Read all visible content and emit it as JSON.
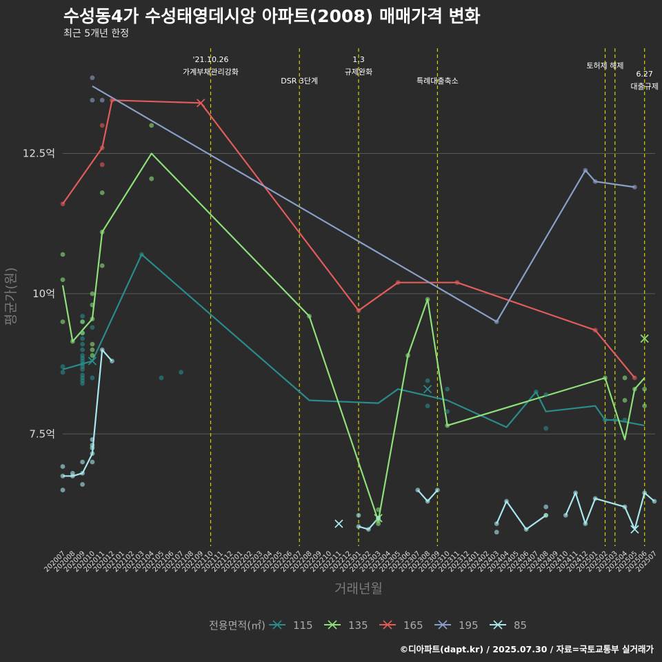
{
  "title": "수성동4가 수성태영데시앙 아파트(2008) 매매가격 변화",
  "subtitle": "최근 5개년 한정",
  "caption": "©디아파트(dapt.kr) / 2025.07.30 / 자료=국토교통부 실거래가",
  "colors": {
    "background": "#2b2b2b",
    "grid": "#5a5a5a",
    "event_line": "#d4d400",
    "115": "#2a8c8c",
    "135": "#8ee07a",
    "165": "#e25c5c",
    "195": "#8aa0c8",
    "85": "#a8e8ee"
  },
  "chart_data": {
    "type": "line",
    "title": "수성동4가 수성태영데시앙 아파트(2008) 매매가격 변화",
    "subtitle": "최근 5개년 한정",
    "xlabel": "거래년월",
    "ylabel": "평균가(원)",
    "ylim": [
      5.5,
      14.4
    ],
    "yticks": [
      {
        "value": 7.5,
        "label": "7.5억"
      },
      {
        "value": 10,
        "label": "10억"
      },
      {
        "value": 12.5,
        "label": "12.5억"
      }
    ],
    "x_categories": [
      "202007",
      "202008",
      "202009",
      "202010",
      "202011",
      "202012",
      "202101",
      "202102",
      "202103",
      "202104",
      "202105",
      "202106",
      "202107",
      "202108",
      "202109",
      "202110",
      "202111",
      "202112",
      "202201",
      "202202",
      "202203",
      "202204",
      "202205",
      "202206",
      "202207",
      "202208",
      "202209",
      "202210",
      "202211",
      "202212",
      "202301",
      "202302",
      "202303",
      "202304",
      "202305",
      "202306",
      "202307",
      "202308",
      "202309",
      "202310",
      "202311",
      "202312",
      "202401",
      "202402",
      "202403",
      "202404",
      "202405",
      "202406",
      "202407",
      "202408",
      "202409",
      "202410",
      "202411",
      "202412",
      "202501",
      "202502",
      "202503",
      "202504",
      "202505",
      "202506",
      "202507"
    ],
    "legend_title": "전용면적(㎡)",
    "legend_position": "bottom",
    "grid": true,
    "events": [
      {
        "x": "202110",
        "label": [
          "'21.10.26",
          "가계부채관리강화"
        ],
        "level": 1
      },
      {
        "x": "202207",
        "label": [
          "DSR 3단계"
        ],
        "level": 2
      },
      {
        "x": "202301",
        "label": [
          "1.3",
          "규제완화"
        ],
        "level": 1
      },
      {
        "x": "202309",
        "label": [
          "특례대출축소"
        ],
        "level": 2
      },
      {
        "x": "202502",
        "label": [
          "토허제 해제"
        ],
        "level": 0
      },
      {
        "x": "202503",
        "label": [],
        "level": 0
      },
      {
        "x": "202506",
        "label": [
          "6.27",
          "대출규제"
        ],
        "level": 3
      }
    ],
    "series": [
      {
        "name": "115",
        "color": "#2a8c8c",
        "line": [
          [
            "202007",
            8.65
          ],
          [
            "202009",
            8.75
          ],
          [
            "202010",
            8.8
          ],
          [
            "202103",
            10.7
          ],
          [
            "202208",
            8.1
          ],
          [
            "202303",
            8.05
          ],
          [
            "202305",
            8.3
          ],
          [
            "202310",
            8.1
          ],
          [
            "202404",
            7.62
          ],
          [
            "202407",
            8.25
          ],
          [
            "202408",
            7.9
          ],
          [
            "202501",
            8.0
          ],
          [
            "202502",
            7.75
          ],
          [
            "202503",
            7.75
          ],
          [
            "202506",
            7.65
          ]
        ],
        "points": [
          [
            "202007",
            8.6
          ],
          [
            "202007",
            8.7
          ],
          [
            "202009",
            8.4
          ],
          [
            "202009",
            8.45
          ],
          [
            "202009",
            8.5
          ],
          [
            "202009",
            8.55
          ],
          [
            "202009",
            8.65
          ],
          [
            "202009",
            8.7
          ],
          [
            "202009",
            8.75
          ],
          [
            "202009",
            8.8
          ],
          [
            "202009",
            8.85
          ],
          [
            "202009",
            8.9
          ],
          [
            "202009",
            9.0
          ],
          [
            "202009",
            9.1
          ],
          [
            "202009",
            9.2
          ],
          [
            "202009",
            9.3
          ],
          [
            "202009",
            9.5
          ],
          [
            "202009",
            9.6
          ],
          [
            "202010",
            8.5
          ],
          [
            "202010",
            9.4
          ],
          [
            "202103",
            10.7
          ],
          [
            "202105",
            8.5
          ],
          [
            "202107",
            8.6
          ],
          [
            "202308",
            8.0
          ],
          [
            "202308",
            8.45
          ],
          [
            "202310",
            7.9
          ],
          [
            "202310",
            8.3
          ],
          [
            "202407",
            8.25
          ],
          [
            "202408",
            7.6
          ],
          [
            "202408",
            8.2
          ],
          [
            "202502",
            7.75
          ],
          [
            "202503",
            7.75
          ],
          [
            "202504",
            7.75
          ]
        ],
        "crosses": [
          [
            "202010",
            8.8
          ],
          [
            "202308",
            8.3
          ]
        ]
      },
      {
        "name": "135",
        "color": "#8ee07a",
        "line": [
          [
            "202007",
            10.15
          ],
          [
            "202008",
            9.15
          ],
          [
            "202010",
            9.55
          ],
          [
            "202011",
            11.1
          ],
          [
            "202104",
            12.5
          ],
          [
            "202208",
            9.6
          ],
          [
            "202303",
            5.95
          ],
          [
            "202306",
            8.9
          ],
          [
            "202308",
            9.9
          ],
          [
            "202310",
            7.65
          ],
          [
            "202502",
            8.5
          ],
          [
            "202504",
            7.4
          ],
          [
            "202505",
            8.3
          ],
          [
            "202506",
            8.5
          ]
        ],
        "points": [
          [
            "202007",
            9.5
          ],
          [
            "202007",
            10.25
          ],
          [
            "202007",
            10.7
          ],
          [
            "202008",
            9.15
          ],
          [
            "202009",
            9.3
          ],
          [
            "202009",
            9.5
          ],
          [
            "202010",
            8.9
          ],
          [
            "202010",
            9.0
          ],
          [
            "202010",
            9.1
          ],
          [
            "202010",
            9.55
          ],
          [
            "202010",
            9.8
          ],
          [
            "202010",
            10.0
          ],
          [
            "202011",
            10.5
          ],
          [
            "202011",
            11.1
          ],
          [
            "202011",
            11.8
          ],
          [
            "202104",
            12.05
          ],
          [
            "202104",
            13.0
          ],
          [
            "202208",
            9.6
          ],
          [
            "202303",
            5.9
          ],
          [
            "202303",
            5.95
          ],
          [
            "202303",
            6.0
          ],
          [
            "202303",
            6.15
          ],
          [
            "202306",
            8.9
          ],
          [
            "202308",
            9.9
          ],
          [
            "202310",
            7.65
          ],
          [
            "202408",
            6.05
          ],
          [
            "202502",
            8.5
          ],
          [
            "202504",
            8.1
          ],
          [
            "202504",
            8.5
          ],
          [
            "202505",
            8.3
          ],
          [
            "202506",
            8.0
          ],
          [
            "202506",
            8.3
          ]
        ],
        "crosses": [
          [
            "202303",
            6.0
          ],
          [
            "202506",
            9.2
          ]
        ]
      },
      {
        "name": "165",
        "color": "#e25c5c",
        "line": [
          [
            "202007",
            11.6
          ],
          [
            "202011",
            12.6
          ],
          [
            "202012",
            13.45
          ],
          [
            "202109",
            13.4
          ],
          [
            "202301",
            9.7
          ],
          [
            "202305",
            10.2
          ],
          [
            "202311",
            10.2
          ],
          [
            "202501",
            9.35
          ],
          [
            "202505",
            8.5
          ]
        ],
        "points": [
          [
            "202007",
            11.6
          ],
          [
            "202011",
            12.3
          ],
          [
            "202011",
            12.6
          ],
          [
            "202011",
            13.0
          ],
          [
            "202012",
            13.45
          ],
          [
            "202301",
            9.7
          ],
          [
            "202305",
            10.2
          ],
          [
            "202311",
            10.2
          ],
          [
            "202501",
            9.35
          ],
          [
            "202505",
            8.5
          ]
        ],
        "crosses": [
          [
            "202109",
            13.4
          ]
        ]
      },
      {
        "name": "195",
        "color": "#8aa0c8",
        "line": [
          [
            "202010",
            13.7
          ],
          [
            "202403",
            9.5
          ],
          [
            "202412",
            12.2
          ],
          [
            "202501",
            12.0
          ],
          [
            "202505",
            11.9
          ]
        ],
        "points": [
          [
            "202010",
            13.45
          ],
          [
            "202010",
            13.85
          ],
          [
            "202011",
            13.45
          ],
          [
            "202403",
            9.5
          ],
          [
            "202412",
            12.2
          ],
          [
            "202501",
            12.0
          ],
          [
            "202505",
            11.9
          ]
        ],
        "crosses": []
      },
      {
        "name": "85",
        "color": "#a8e8ee",
        "line": [
          [
            "202007",
            6.75
          ],
          [
            "202008",
            6.75
          ],
          [
            "202009",
            6.8
          ],
          [
            "202010",
            7.15
          ],
          [
            "202011",
            9.0
          ],
          [
            "202012",
            8.8
          ]
        ],
        "segments": [
          [
            [
              "202301",
              5.85
            ],
            [
              "202302",
              5.8
            ],
            [
              "202303",
              6.0
            ]
          ],
          [
            [
              "202307",
              6.5
            ],
            [
              "202308",
              6.3
            ],
            [
              "202309",
              6.5
            ]
          ],
          [
            [
              "202403",
              5.9
            ],
            [
              "202404",
              6.3
            ],
            [
              "202406",
              5.8
            ],
            [
              "202408",
              6.05
            ]
          ],
          [
            [
              "202410",
              6.05
            ],
            [
              "202411",
              6.45
            ],
            [
              "202412",
              5.9
            ],
            [
              "202501",
              6.35
            ],
            [
              "202502",
              6.3
            ],
            [
              "202504",
              6.2
            ],
            [
              "202505",
              5.8
            ],
            [
              "202506",
              6.45
            ],
            [
              "202507",
              6.3
            ]
          ]
        ],
        "points": [
          [
            "202007",
            6.5
          ],
          [
            "202007",
            6.75
          ],
          [
            "202007",
            6.92
          ],
          [
            "202008",
            6.75
          ],
          [
            "202008",
            6.8
          ],
          [
            "202009",
            6.6
          ],
          [
            "202009",
            6.8
          ],
          [
            "202009",
            7.0
          ],
          [
            "202010",
            7.0
          ],
          [
            "202010",
            7.15
          ],
          [
            "202010",
            7.25
          ],
          [
            "202010",
            7.3
          ],
          [
            "202010",
            7.4
          ],
          [
            "202011",
            9.0
          ],
          [
            "202012",
            8.8
          ],
          [
            "202301",
            5.85
          ],
          [
            "202301",
            6.05
          ],
          [
            "202302",
            5.8
          ],
          [
            "202303",
            6.0
          ],
          [
            "202307",
            6.5
          ],
          [
            "202308",
            6.3
          ],
          [
            "202309",
            6.5
          ],
          [
            "202403",
            5.75
          ],
          [
            "202403",
            5.9
          ],
          [
            "202404",
            6.3
          ],
          [
            "202406",
            5.8
          ],
          [
            "202408",
            6.05
          ],
          [
            "202408",
            6.2
          ],
          [
            "202410",
            6.05
          ],
          [
            "202411",
            6.45
          ],
          [
            "202412",
            5.9
          ],
          [
            "202501",
            6.35
          ],
          [
            "202504",
            6.2
          ],
          [
            "202506",
            6.45
          ],
          [
            "202507",
            6.3
          ]
        ],
        "crosses": [
          [
            "202211",
            5.9
          ],
          [
            "202505",
            5.8
          ]
        ]
      }
    ]
  }
}
